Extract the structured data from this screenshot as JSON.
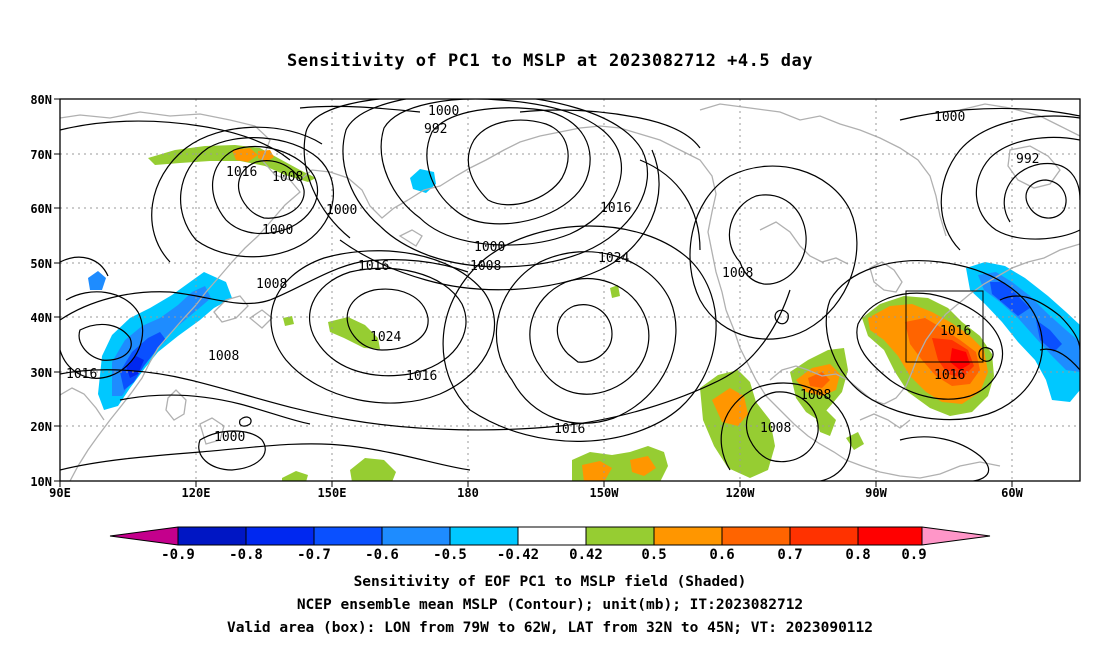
{
  "title": "Sensitivity of PC1 to MSLP at 2023082712 +4.5 day",
  "captions": [
    "Sensitivity of EOF PC1 to MSLP field (Shaded)",
    "NCEP ensemble mean MSLP (Contour); unit(mb); IT:2023082712",
    "Valid area (box): LON from 79W to 62W, LAT from 32N to 45N; VT: 2023090112"
  ],
  "lat_labels": [
    "80N",
    "70N",
    "60N",
    "50N",
    "40N",
    "30N",
    "20N",
    "10N"
  ],
  "lon_labels": [
    "90E",
    "120E",
    "150E",
    "180",
    "150W",
    "120W",
    "90W",
    "60W"
  ],
  "colorbar": {
    "labels": [
      "-0.9",
      "-0.8",
      "-0.7",
      "-0.6",
      "-0.5",
      "-0.42",
      "0.42",
      "0.5",
      "0.6",
      "0.7",
      "0.8",
      "0.9"
    ],
    "colors": [
      "#c4008c",
      "#0016c4",
      "#0028f0",
      "#0a50ff",
      "#1e8cff",
      "#00c8ff",
      "#ffffff",
      "#96cd32",
      "#ff9600",
      "#ff6400",
      "#ff3200",
      "#ff0000",
      "#ff96c8"
    ]
  },
  "isobars": [
    {
      "text": "1000"
    },
    {
      "text": "992"
    },
    {
      "text": "1016"
    },
    {
      "text": "1008"
    },
    {
      "text": "1000"
    },
    {
      "text": "1000"
    },
    {
      "text": "1008"
    },
    {
      "text": "1016"
    },
    {
      "text": "1024"
    },
    {
      "text": "1016"
    },
    {
      "text": "1008"
    },
    {
      "text": "1016"
    },
    {
      "text": "1000"
    },
    {
      "text": "1000"
    },
    {
      "text": "1008"
    },
    {
      "text": "1016"
    },
    {
      "text": "1024"
    },
    {
      "text": "1016"
    },
    {
      "text": "1008"
    },
    {
      "text": "1008"
    },
    {
      "text": "1008"
    },
    {
      "text": "1016"
    },
    {
      "text": "1016"
    },
    {
      "text": "1000"
    },
    {
      "text": "992"
    }
  ],
  "valid_box": {
    "lon_west": -79,
    "lon_east": -62,
    "lat_south": 32,
    "lat_north": 45
  }
}
